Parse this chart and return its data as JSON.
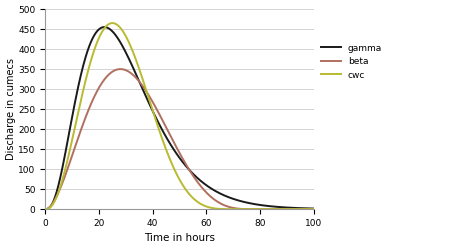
{
  "title": "",
  "xlabel": "Time in hours",
  "ylabel": "Discharge in cumecs",
  "xlim": [
    0,
    100
  ],
  "ylim": [
    0,
    500
  ],
  "xticks": [
    0,
    20,
    40,
    60,
    80,
    100
  ],
  "yticks": [
    0,
    50,
    100,
    150,
    200,
    250,
    300,
    350,
    400,
    450,
    500
  ],
  "legend_labels": [
    "gamma",
    "beta",
    "cwc"
  ],
  "line_colors": [
    "#1a1a1a",
    "#b07060",
    "#b8bb30"
  ],
  "background_color": "#ffffff",
  "grid_color": "#cccccc",
  "figsize": [
    4.74,
    2.49
  ],
  "dpi": 100,
  "gamma_peak": 455,
  "gamma_tp": 22,
  "gamma_alpha": 3.8,
  "beta_peak": 350,
  "beta_tp": 28,
  "beta_tmax": 78,
  "beta_a": 3.0,
  "cwc_peak": 465,
  "cwc_tp": 25,
  "cwc_tmax": 72,
  "cwc_a": 3.5
}
